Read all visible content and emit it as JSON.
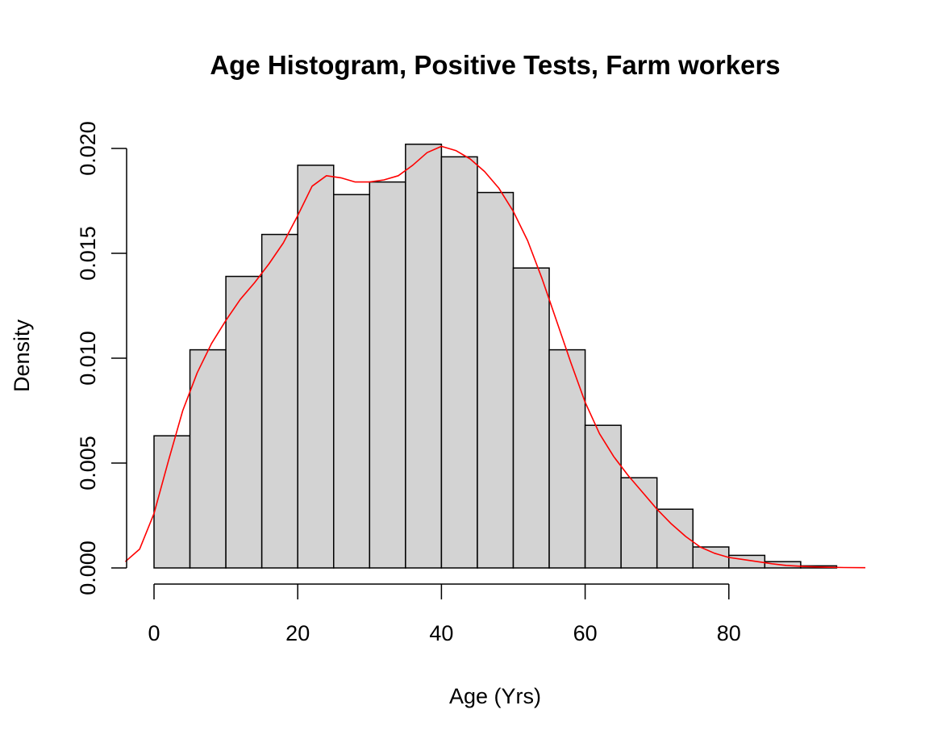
{
  "chart_data": {
    "type": "histogram",
    "title": "Age Histogram, Positive Tests,  Farm workers",
    "xlabel": "Age (Yrs)",
    "ylabel": "Density",
    "bin_width": 5,
    "bins": [
      {
        "start": 0,
        "end": 5,
        "density": 0.0063
      },
      {
        "start": 5,
        "end": 10,
        "density": 0.0104
      },
      {
        "start": 10,
        "end": 15,
        "density": 0.0139
      },
      {
        "start": 15,
        "end": 20,
        "density": 0.0159
      },
      {
        "start": 20,
        "end": 25,
        "density": 0.0192
      },
      {
        "start": 25,
        "end": 30,
        "density": 0.0178
      },
      {
        "start": 30,
        "end": 35,
        "density": 0.0184
      },
      {
        "start": 35,
        "end": 40,
        "density": 0.0202
      },
      {
        "start": 40,
        "end": 45,
        "density": 0.0196
      },
      {
        "start": 45,
        "end": 50,
        "density": 0.0179
      },
      {
        "start": 50,
        "end": 55,
        "density": 0.0143
      },
      {
        "start": 55,
        "end": 60,
        "density": 0.0104
      },
      {
        "start": 60,
        "end": 65,
        "density": 0.0068
      },
      {
        "start": 65,
        "end": 70,
        "density": 0.0043
      },
      {
        "start": 70,
        "end": 75,
        "density": 0.0028
      },
      {
        "start": 75,
        "end": 80,
        "density": 0.001
      },
      {
        "start": 80,
        "end": 85,
        "density": 0.0006
      },
      {
        "start": 85,
        "end": 90,
        "density": 0.0003
      },
      {
        "start": 90,
        "end": 95,
        "density": 0.0001
      }
    ],
    "density_curve": {
      "x": [
        -4,
        -2,
        0,
        2,
        4,
        6,
        8,
        10,
        12,
        14,
        16,
        18,
        20,
        22,
        24,
        26,
        28,
        30,
        32,
        34,
        36,
        38,
        40,
        42,
        44,
        46,
        48,
        50,
        52,
        54,
        56,
        58,
        60,
        62,
        64,
        66,
        68,
        70,
        72,
        74,
        76,
        78,
        80,
        82,
        84,
        86,
        88,
        90,
        92,
        94,
        96,
        99
      ],
      "y": [
        0.0003,
        0.0009,
        0.0026,
        0.0051,
        0.0075,
        0.0093,
        0.0107,
        0.0118,
        0.0128,
        0.0136,
        0.0145,
        0.0155,
        0.0168,
        0.0182,
        0.0187,
        0.0186,
        0.0184,
        0.0184,
        0.0185,
        0.0187,
        0.0192,
        0.0198,
        0.0201,
        0.0199,
        0.0195,
        0.0189,
        0.0181,
        0.017,
        0.0156,
        0.0138,
        0.0118,
        0.0098,
        0.0079,
        0.0064,
        0.0053,
        0.0044,
        0.0036,
        0.0028,
        0.0021,
        0.0015,
        0.001,
        0.0007,
        0.0005,
        0.0004,
        0.0003,
        0.0002,
        0.00012,
        8e-05,
        5e-05,
        3e-05,
        2e-05,
        1e-05
      ],
      "color": "#ff0000"
    },
    "x_ticks": [
      "0",
      "20",
      "40",
      "60",
      "80"
    ],
    "y_ticks": [
      "0.000",
      "0.005",
      "0.010",
      "0.015",
      "0.020"
    ],
    "xlim": [
      -4,
      99
    ],
    "ylim": [
      0,
      0.02
    ],
    "bar_fill": "#d3d3d3",
    "bar_stroke": "#000000",
    "grid": false
  }
}
